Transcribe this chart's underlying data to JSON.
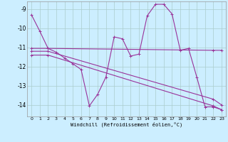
{
  "xlabel": "Windchill (Refroidissement éolien,°C)",
  "line_color": "#993399",
  "background_color": "#cceeff",
  "grid_color": "#aacccc",
  "xlim": [
    -0.5,
    23.5
  ],
  "ylim": [
    -14.6,
    -8.6
  ],
  "yticks": [
    -9,
    -10,
    -11,
    -12,
    -13,
    -14
  ],
  "xticks": [
    0,
    1,
    2,
    3,
    4,
    5,
    6,
    7,
    8,
    9,
    10,
    11,
    12,
    13,
    14,
    15,
    16,
    17,
    18,
    19,
    20,
    21,
    22,
    23
  ],
  "lines": [
    {
      "x": [
        0,
        1,
        2,
        3,
        4,
        5,
        6,
        7,
        8,
        9,
        10,
        11,
        12,
        13,
        14,
        15,
        16,
        17,
        18,
        19,
        20,
        21,
        22,
        23
      ],
      "y": [
        -9.3,
        -10.15,
        -11.05,
        -11.25,
        -11.55,
        -11.85,
        -12.15,
        -14.05,
        -13.45,
        -12.55,
        -10.45,
        -10.55,
        -11.45,
        -11.35,
        -9.35,
        -8.75,
        -8.75,
        -9.25,
        -11.15,
        -11.05,
        -12.55,
        -14.1,
        -14.1,
        -14.25
      ]
    },
    {
      "x": [
        0,
        2,
        22,
        23
      ],
      "y": [
        -11.05,
        -11.05,
        -11.15,
        -11.15
      ]
    },
    {
      "x": [
        0,
        2,
        22,
        23
      ],
      "y": [
        -11.2,
        -11.2,
        -13.7,
        -14.0
      ]
    },
    {
      "x": [
        0,
        2,
        22,
        23
      ],
      "y": [
        -11.4,
        -11.4,
        -14.05,
        -14.25
      ]
    }
  ]
}
